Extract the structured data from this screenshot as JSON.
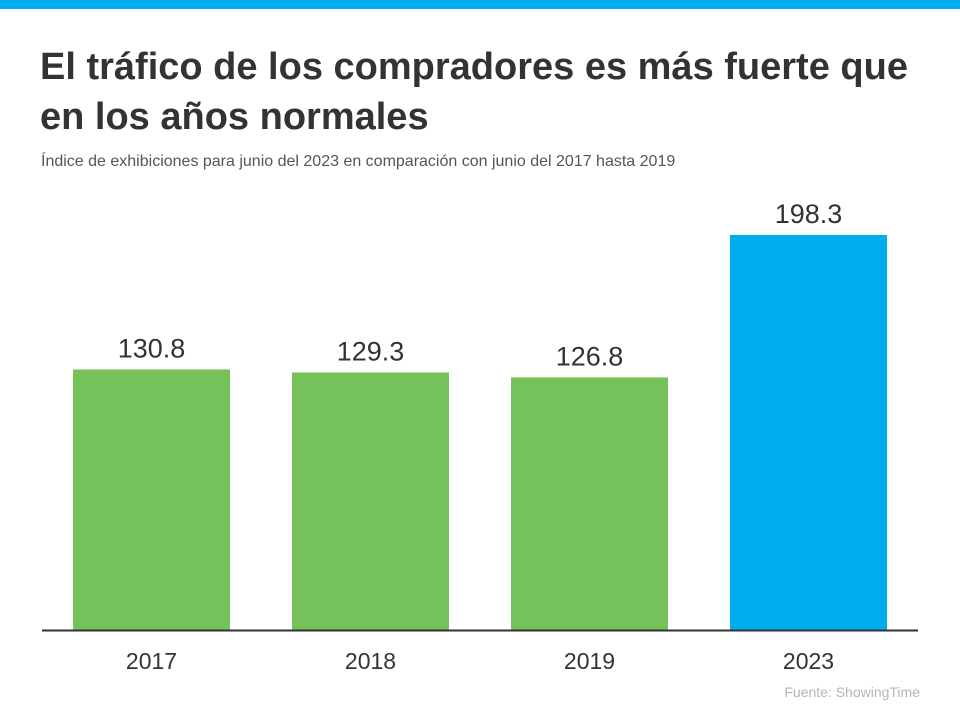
{
  "title": "El tráfico de los compradores es más fuerte que en los años normales",
  "subtitle": "Índice de exhibiciones para junio del 2023 en comparación con junio del 2017 hasta 2019",
  "source": "Fuente:  ShowingTime",
  "colors": {
    "accent": "#00aeef",
    "green": "#76c25a",
    "blue": "#00aeef",
    "axis": "#333333",
    "text": "#333333"
  },
  "chart_data": {
    "type": "bar",
    "categories": [
      "2017",
      "2018",
      "2019",
      "2023"
    ],
    "values": [
      130.8,
      129.3,
      126.8,
      198.3
    ],
    "data_labels": [
      "130.8",
      "129.3",
      "126.8",
      "198.3"
    ],
    "bar_colors": [
      "#76c25a",
      "#76c25a",
      "#76c25a",
      "#00aeef"
    ],
    "xlabel": "",
    "ylabel": "",
    "ylim": [
      0,
      198.3
    ],
    "grid": false,
    "legend": "none"
  }
}
